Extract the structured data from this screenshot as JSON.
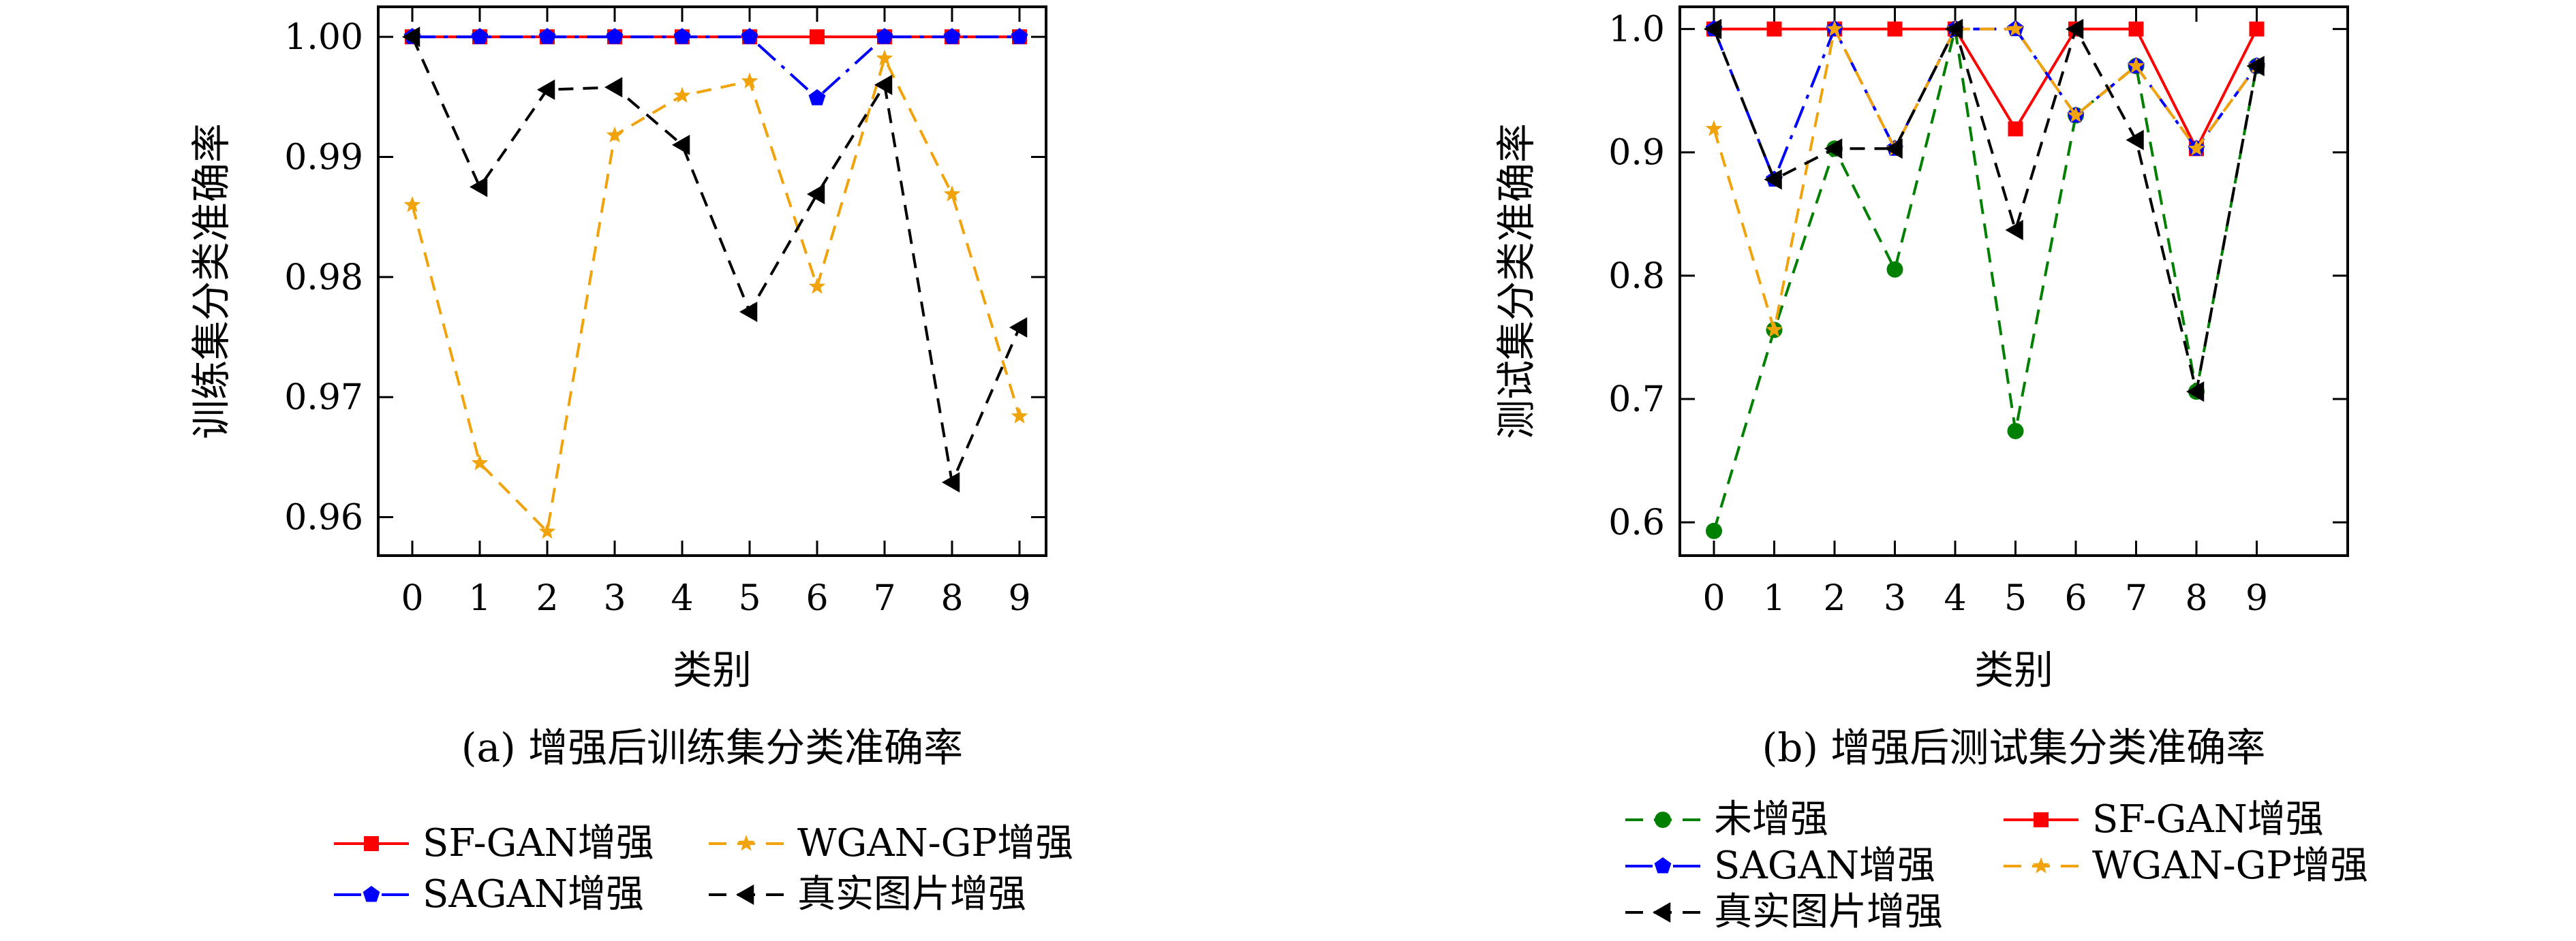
{
  "chart_data": [
    {
      "type": "line",
      "title": "(a) 增强后训练集分类准确率",
      "xlabel": "类别",
      "ylabel": "训练集分类准确率",
      "x": [
        0,
        1,
        2,
        3,
        4,
        5,
        6,
        7,
        8,
        9
      ],
      "xticks": [
        "0",
        "1",
        "2",
        "3",
        "4",
        "5",
        "6",
        "7",
        "8",
        "9"
      ],
      "ylim": [
        0.9568,
        1.0025
      ],
      "yticks": [
        "0.96",
        "0.97",
        "0.98",
        "0.99",
        "1.00"
      ],
      "ytick_values": [
        0.96,
        0.97,
        0.98,
        0.99,
        1.0
      ],
      "grid": false,
      "legend_position": "bottom",
      "series": [
        {
          "name": "SF-GAN增强",
          "color": "#ff0000",
          "marker": "square",
          "dash": "solid",
          "values": [
            1.0,
            1.0,
            1.0,
            1.0,
            1.0,
            1.0,
            1.0,
            1.0,
            1.0,
            1.0
          ]
        },
        {
          "name": "WGAN-GP增强",
          "color": "#f0a30a",
          "marker": "star",
          "dash": "dashed",
          "values": [
            0.986,
            0.9645,
            0.9588,
            0.9918,
            0.9951,
            0.9963,
            0.9792,
            0.9982,
            0.9869,
            0.9684
          ]
        },
        {
          "name": "SAGAN增强",
          "color": "#0000ff",
          "marker": "pentagon",
          "dash": "dashdot",
          "values": [
            1.0,
            1.0,
            1.0,
            1.0,
            1.0,
            1.0,
            0.9949,
            1.0,
            1.0,
            1.0
          ]
        },
        {
          "name": "真实图片增强",
          "color": "#000000",
          "marker": "triangle-left",
          "dash": "dashed",
          "values": [
            1.0,
            0.9875,
            0.9956,
            0.9958,
            0.991,
            0.9771,
            0.9869,
            0.996,
            0.9629,
            0.9758
          ]
        }
      ]
    },
    {
      "type": "line",
      "title": "(b) 增强后测试集分类准确率",
      "xlabel": "类别",
      "ylabel": "测试集分类准确率",
      "x": [
        0,
        1,
        2,
        3,
        4,
        5,
        6,
        7,
        8,
        9
      ],
      "xticks": [
        "0",
        "1",
        "2",
        "3",
        "4",
        "5",
        "6",
        "7",
        "8",
        "9"
      ],
      "ylim": [
        0.573,
        1.018
      ],
      "yticks": [
        "0.6",
        "0.7",
        "0.8",
        "0.9",
        "1.0"
      ],
      "ytick_values": [
        0.6,
        0.7,
        0.8,
        0.9,
        1.0
      ],
      "grid": false,
      "legend_position": "bottom",
      "series": [
        {
          "name": "未增强",
          "color": "#008000",
          "marker": "circle",
          "dash": "dashed",
          "values": [
            0.593,
            0.756,
            0.903,
            0.805,
            1.0,
            0.674,
            0.93,
            0.97,
            0.706,
            0.97
          ]
        },
        {
          "name": "SF-GAN增强",
          "color": "#ff0000",
          "marker": "square",
          "dash": "solid",
          "values": [
            1.0,
            1.0,
            1.0,
            1.0,
            1.0,
            0.919,
            1.0,
            1.0,
            0.903,
            1.0
          ]
        },
        {
          "name": "SAGAN增强",
          "color": "#0000ff",
          "marker": "pentagon",
          "dash": "dashdot",
          "values": [
            1.0,
            0.878,
            1.0,
            0.903,
            1.0,
            1.0,
            0.93,
            0.97,
            0.903,
            0.97
          ]
        },
        {
          "name": "WGAN-GP增强",
          "color": "#f0a30a",
          "marker": "star",
          "dash": "dashed",
          "values": [
            0.919,
            0.756,
            1.0,
            0.903,
            1.0,
            1.0,
            0.93,
            0.97,
            0.903,
            0.97
          ]
        },
        {
          "name": "真实图片增强",
          "color": "#000000",
          "marker": "triangle-left",
          "dash": "dashed",
          "values": [
            1.0,
            0.878,
            0.903,
            0.903,
            1.0,
            0.837,
            1.0,
            0.91,
            0.706,
            0.97
          ]
        }
      ]
    }
  ]
}
